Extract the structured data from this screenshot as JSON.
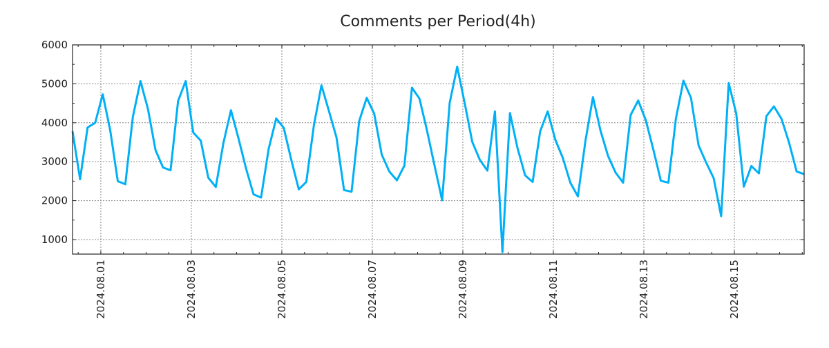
{
  "chart_data": {
    "type": "line",
    "title": "Comments per Period(4h)",
    "xlabel": "",
    "ylabel": "",
    "start": "2024-07-31 09:00",
    "step_hours": 4,
    "x_ticks": [
      "2024.08.01",
      "2024.08.03",
      "2024.08.05",
      "2024.08.07",
      "2024.08.09",
      "2024.08.11",
      "2024.08.13",
      "2024.08.15"
    ],
    "x_tick_hours_from_start": [
      15,
      63,
      111,
      159,
      207,
      255,
      303,
      351
    ],
    "xlim_hours": [
      0,
      388
    ],
    "ylim": [
      627,
      6000
    ],
    "y_ticks": [
      1000,
      2000,
      3000,
      4000,
      5000,
      6000
    ],
    "y_tick_labels": [
      "1000",
      "2000",
      "3000",
      "4000",
      "5000",
      "6000"
    ],
    "grid": true,
    "color": "#00b0f6",
    "series": [
      {
        "name": "comments",
        "values": [
          3780,
          2550,
          3880,
          4000,
          4730,
          3800,
          2500,
          2420,
          4150,
          5070,
          4350,
          3300,
          2850,
          2780,
          4560,
          5070,
          3750,
          3540,
          2590,
          2350,
          3480,
          4320,
          3600,
          2830,
          2160,
          2080,
          3330,
          4110,
          3870,
          3050,
          2290,
          2480,
          3940,
          4960,
          4300,
          3620,
          2270,
          2230,
          4040,
          4640,
          4230,
          3180,
          2750,
          2520,
          2900,
          4900,
          4620,
          3800,
          2900,
          2010,
          4510,
          5440,
          4500,
          3510,
          3050,
          2770,
          4290,
          680,
          4250,
          3350,
          2650,
          2480,
          3780,
          4290,
          3570,
          3100,
          2460,
          2110,
          3530,
          4660,
          3800,
          3150,
          2720,
          2460,
          4200,
          4570,
          4070,
          3320,
          2510,
          2460,
          4110,
          5080,
          4640,
          3420,
          2980,
          2580,
          1600,
          5020,
          4240,
          2360,
          2890,
          2700,
          4170,
          4420,
          4100,
          3490,
          2750,
          2680
        ]
      }
    ]
  }
}
